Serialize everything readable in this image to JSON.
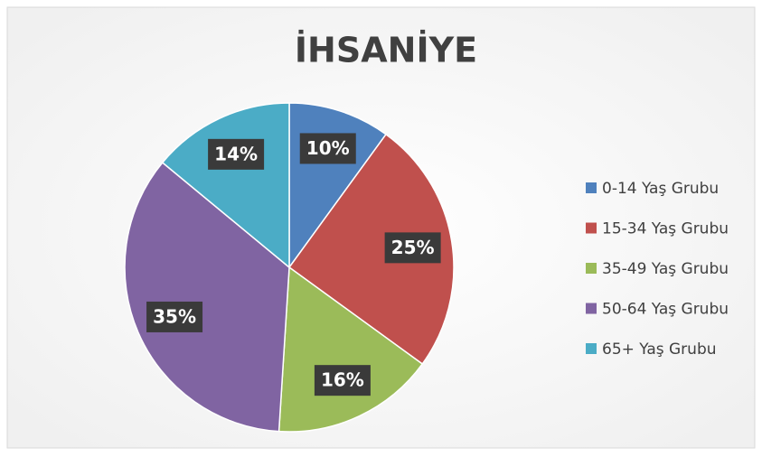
{
  "chart_data": {
    "type": "pie",
    "title": "İHSANİYE",
    "categories": [
      "0-14 Yaş Grubu",
      "15-34 Yaş Grubu",
      "35-49 Yaş Grubu",
      "50-64 Yaş Grubu",
      "65+ Yaş Grubu"
    ],
    "values": [
      10,
      25,
      16,
      35,
      14
    ],
    "value_labels": [
      "10%",
      "25%",
      "16%",
      "35%",
      "14%"
    ],
    "colors": [
      "#4f81bd",
      "#c0504d",
      "#9bbb59",
      "#8064a2",
      "#4bacc6"
    ],
    "legend": "right"
  }
}
